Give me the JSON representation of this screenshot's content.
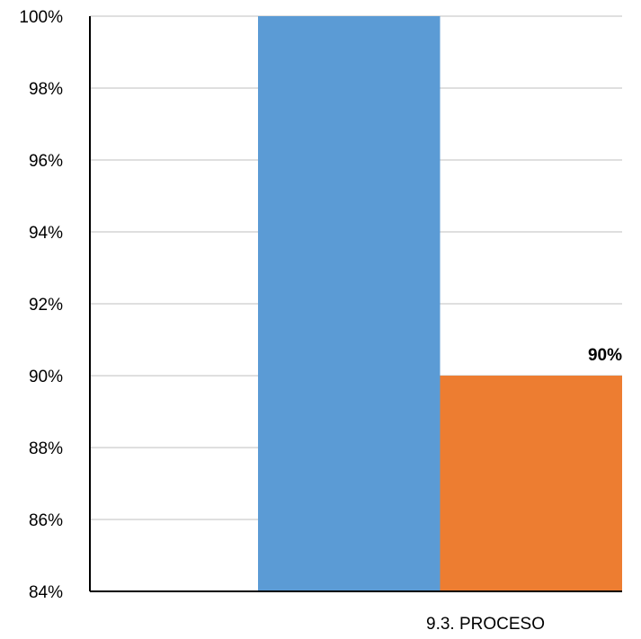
{
  "chart_data": {
    "type": "bar",
    "categories": [
      "9.3. PROCESO"
    ],
    "series": [
      {
        "values": [
          100
        ],
        "color": "#5B9BD5",
        "data_label": ""
      },
      {
        "values": [
          90
        ],
        "color": "#ED7D31",
        "data_label": "90%"
      }
    ],
    "ylim": [
      84,
      100
    ],
    "yticks": [
      {
        "value": 84,
        "label": "84%"
      },
      {
        "value": 86,
        "label": "86%"
      },
      {
        "value": 88,
        "label": "88%"
      },
      {
        "value": 90,
        "label": "90%"
      },
      {
        "value": 92,
        "label": "92%"
      },
      {
        "value": 94,
        "label": "94%"
      },
      {
        "value": 96,
        "label": "96%"
      },
      {
        "value": 98,
        "label": "98%"
      },
      {
        "value": 100,
        "label": "100%"
      }
    ],
    "grid": true,
    "gridline_color": "#BFBFBF",
    "axis_color": "#000000",
    "legend": "none"
  }
}
